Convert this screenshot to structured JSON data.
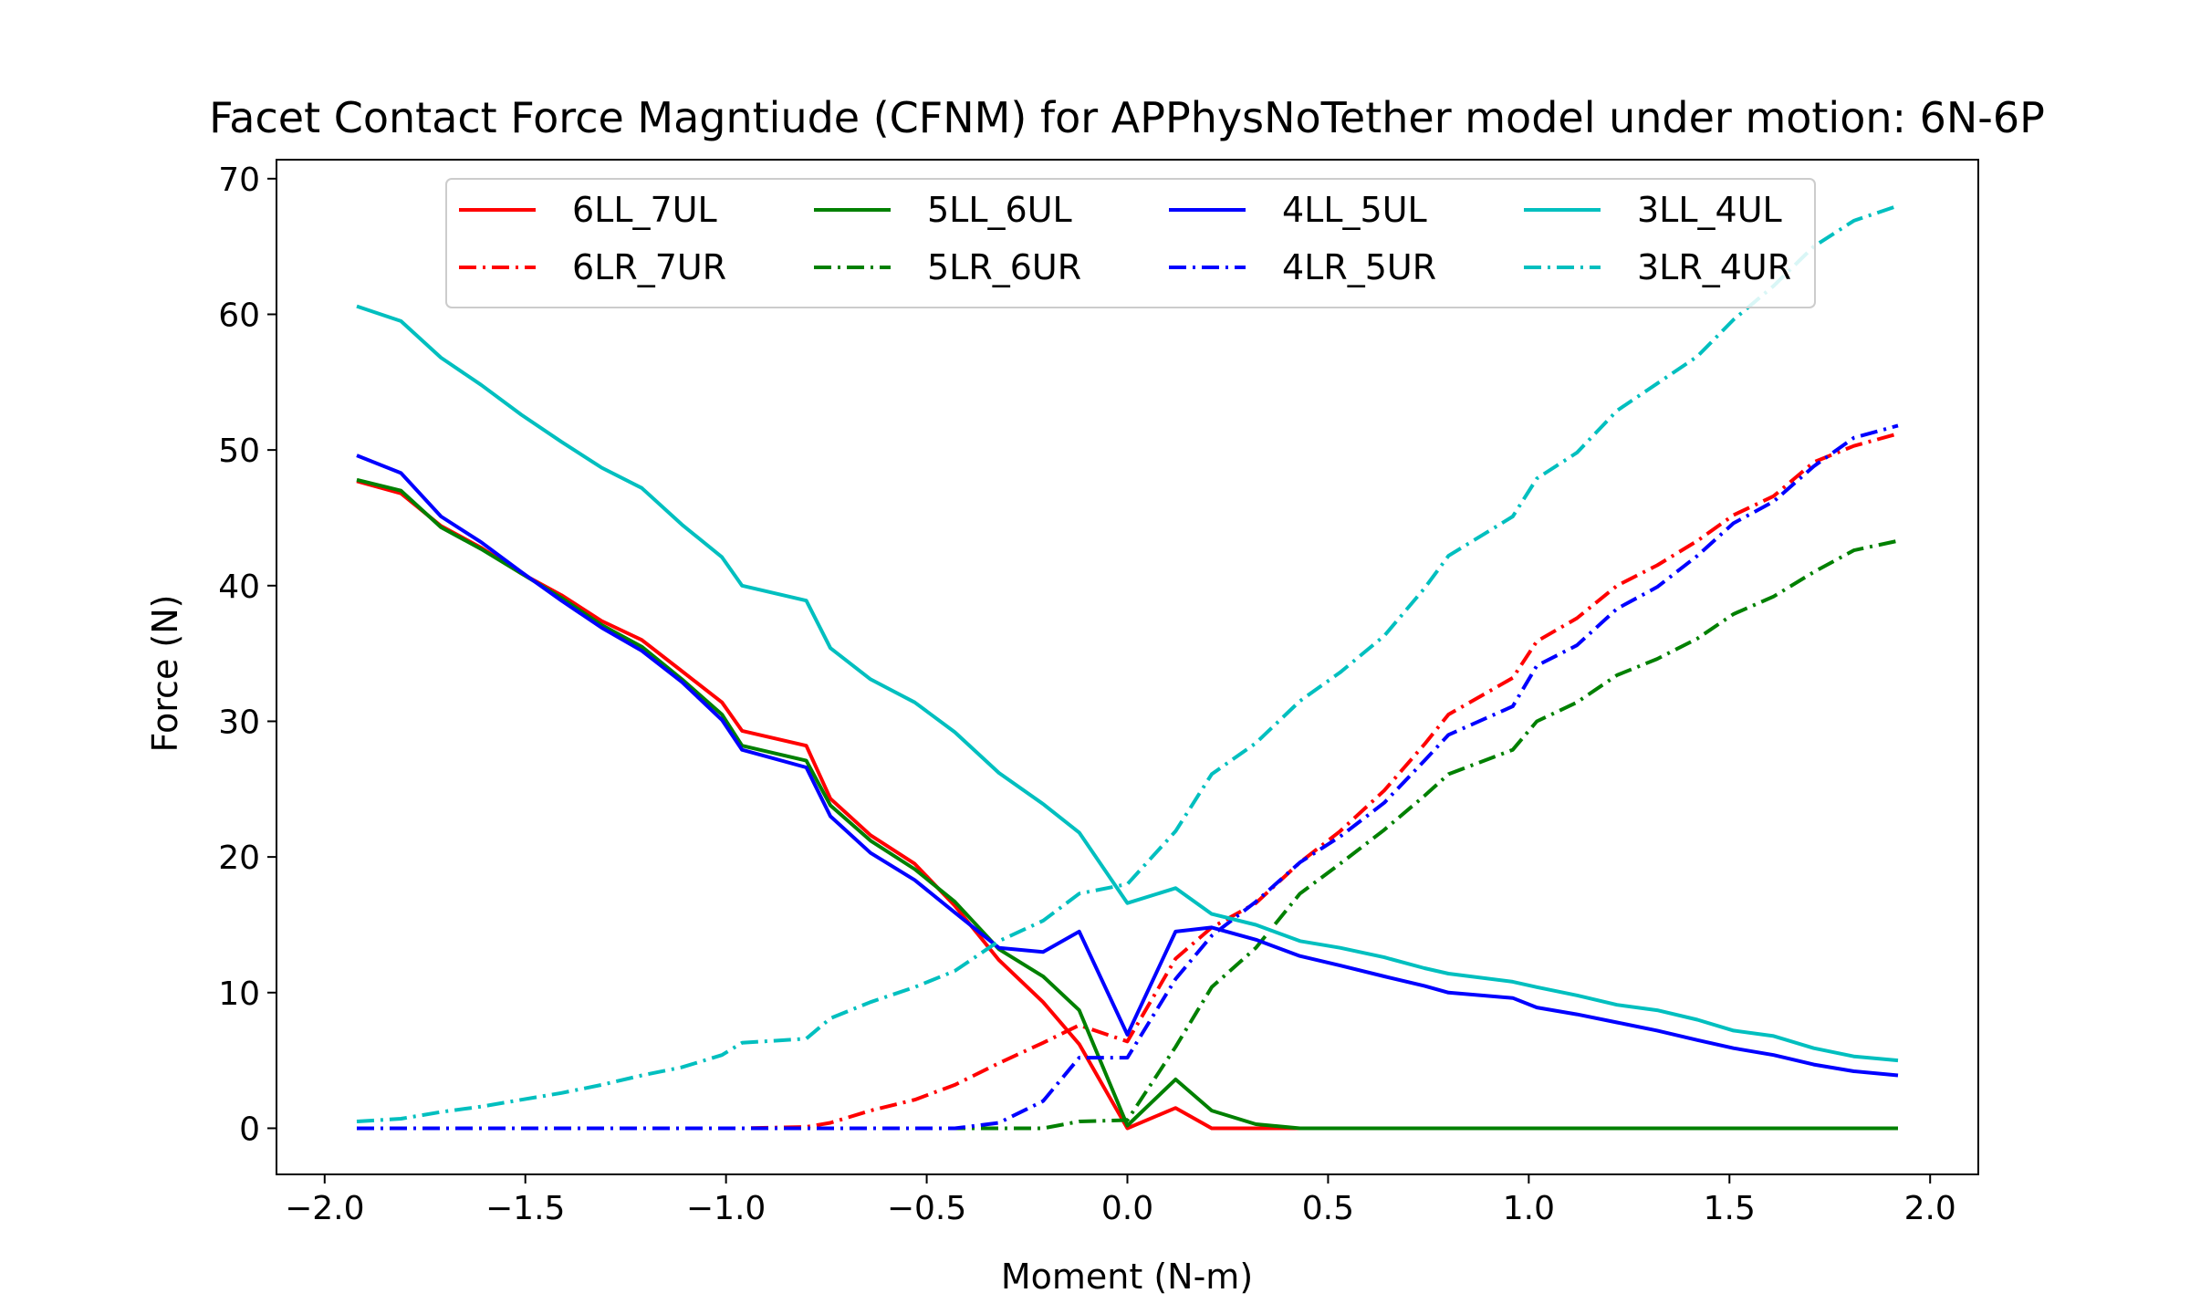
{
  "chart_data": {
    "type": "line",
    "title": "Facet Contact Force Magntiude (CFNM) for APPhysNoTether model under motion: 6N-6P",
    "xlabel": "Moment (N-m)",
    "ylabel": "Force (N)",
    "xlim": [
      -2.12,
      2.12
    ],
    "ylim": [
      -3.4,
      71.4
    ],
    "xticks": [
      -2.0,
      -1.5,
      -1.0,
      -0.5,
      0.0,
      0.5,
      1.0,
      1.5,
      2.0
    ],
    "xtick_labels": [
      "−2.0",
      "−1.5",
      "−1.0",
      "−0.5",
      "0.0",
      "0.5",
      "1.0",
      "1.5",
      "2.0"
    ],
    "yticks": [
      0,
      10,
      20,
      30,
      40,
      50,
      60,
      70
    ],
    "ytick_labels": [
      "0",
      "10",
      "20",
      "30",
      "40",
      "50",
      "60",
      "70"
    ],
    "grid": false,
    "legend_position": "upper center",
    "legend_columns": 4,
    "x": [
      -1.92,
      -1.81,
      -1.71,
      -1.61,
      -1.51,
      -1.41,
      -1.31,
      -1.21,
      -1.11,
      -1.01,
      -0.96,
      -0.8,
      -0.74,
      -0.64,
      -0.53,
      -0.43,
      -0.32,
      -0.21,
      -0.12,
      0.0,
      0.12,
      0.21,
      0.32,
      0.43,
      0.53,
      0.64,
      0.74,
      0.8,
      0.96,
      1.02,
      1.12,
      1.22,
      1.32,
      1.42,
      1.51,
      1.61,
      1.71,
      1.81,
      1.92
    ],
    "series": [
      {
        "name": "6LL_7UL",
        "color": "#ff0000",
        "linestyle": "solid",
        "values": [
          47.7,
          46.8,
          44.4,
          42.8,
          40.9,
          39.3,
          37.4,
          36.0,
          33.7,
          31.4,
          29.3,
          28.2,
          24.3,
          21.6,
          19.5,
          16.4,
          12.4,
          9.3,
          6.2,
          0.0,
          1.5,
          0.0,
          0.0,
          0.0,
          0.0,
          0.0,
          0.0,
          0.0,
          0.0,
          0.0,
          0.0,
          0.0,
          0.0,
          0.0,
          0.0,
          0.0,
          0.0,
          0.0,
          0.0
        ]
      },
      {
        "name": "6LR_7UR",
        "color": "#ff0000",
        "linestyle": "dashdot",
        "values": [
          0.0,
          0.0,
          0.0,
          0.0,
          0.0,
          0.0,
          0.0,
          0.0,
          0.0,
          0.0,
          0.0,
          0.1,
          0.4,
          1.3,
          2.1,
          3.2,
          4.8,
          6.3,
          7.6,
          6.4,
          12.5,
          14.8,
          16.6,
          19.6,
          21.9,
          24.9,
          28.3,
          30.5,
          33.2,
          35.9,
          37.6,
          40.0,
          41.5,
          43.3,
          45.2,
          46.6,
          49.1,
          50.3,
          51.2
        ]
      },
      {
        "name": "5LL_6UL",
        "color": "#008000",
        "linestyle": "solid",
        "values": [
          47.8,
          47.0,
          44.3,
          42.7,
          40.9,
          39.1,
          37.1,
          35.5,
          33.1,
          30.5,
          28.2,
          27.1,
          23.8,
          21.2,
          19.1,
          16.7,
          13.2,
          11.2,
          8.7,
          0.2,
          3.6,
          1.3,
          0.3,
          0.0,
          0.0,
          0.0,
          0.0,
          0.0,
          0.0,
          0.0,
          0.0,
          0.0,
          0.0,
          0.0,
          0.0,
          0.0,
          0.0,
          0.0,
          0.0
        ]
      },
      {
        "name": "5LR_6UR",
        "color": "#008000",
        "linestyle": "dashdot",
        "values": [
          0.0,
          0.0,
          0.0,
          0.0,
          0.0,
          0.0,
          0.0,
          0.0,
          0.0,
          0.0,
          0.0,
          0.0,
          0.0,
          0.0,
          0.0,
          0.0,
          0.0,
          0.0,
          0.5,
          0.6,
          6.0,
          10.4,
          13.3,
          17.3,
          19.5,
          22.0,
          24.5,
          26.1,
          27.9,
          30.0,
          31.4,
          33.4,
          34.6,
          36.1,
          37.9,
          39.2,
          41.0,
          42.6,
          43.3
        ]
      },
      {
        "name": "4LL_5UL",
        "color": "#0000ff",
        "linestyle": "solid",
        "values": [
          49.6,
          48.3,
          45.1,
          43.2,
          41.0,
          38.9,
          36.9,
          35.2,
          32.9,
          30.1,
          27.9,
          26.6,
          23.0,
          20.3,
          18.3,
          15.9,
          13.3,
          13.0,
          14.5,
          6.9,
          14.5,
          14.8,
          13.9,
          12.7,
          12.0,
          11.2,
          10.5,
          10.0,
          9.6,
          8.9,
          8.4,
          7.8,
          7.2,
          6.5,
          5.9,
          5.4,
          4.7,
          4.2,
          3.9
        ]
      },
      {
        "name": "4LR_5UR",
        "color": "#0000ff",
        "linestyle": "dashdot",
        "values": [
          0.0,
          0.0,
          0.0,
          0.0,
          0.0,
          0.0,
          0.0,
          0.0,
          0.0,
          0.0,
          0.0,
          0.0,
          0.0,
          0.0,
          0.0,
          0.0,
          0.4,
          2.0,
          5.2,
          5.2,
          11.0,
          14.2,
          16.7,
          19.6,
          21.5,
          24.0,
          27.1,
          29.0,
          31.1,
          34.1,
          35.6,
          38.3,
          39.9,
          42.2,
          44.6,
          46.2,
          48.8,
          50.9,
          51.8
        ]
      },
      {
        "name": "3LL_4UL",
        "color": "#00bfbf",
        "linestyle": "solid",
        "values": [
          60.6,
          59.5,
          56.8,
          54.8,
          52.6,
          50.6,
          48.7,
          47.2,
          44.5,
          42.1,
          40.0,
          38.9,
          35.4,
          33.1,
          31.4,
          29.2,
          26.2,
          23.9,
          21.8,
          16.6,
          17.7,
          15.8,
          15.0,
          13.8,
          13.3,
          12.6,
          11.8,
          11.4,
          10.8,
          10.4,
          9.8,
          9.1,
          8.7,
          8.0,
          7.2,
          6.8,
          5.9,
          5.3,
          5.0
        ]
      },
      {
        "name": "3LR_4UR",
        "color": "#00bfbf",
        "linestyle": "dashdot",
        "values": [
          0.5,
          0.7,
          1.2,
          1.6,
          2.1,
          2.6,
          3.2,
          3.9,
          4.5,
          5.4,
          6.3,
          6.6,
          8.1,
          9.3,
          10.4,
          11.6,
          13.8,
          15.3,
          17.3,
          18.0,
          21.9,
          26.1,
          28.4,
          31.5,
          33.6,
          36.3,
          39.8,
          42.2,
          45.1,
          47.9,
          49.8,
          52.9,
          54.9,
          56.9,
          59.6,
          62.1,
          65.0,
          66.9,
          68.0
        ]
      }
    ]
  }
}
